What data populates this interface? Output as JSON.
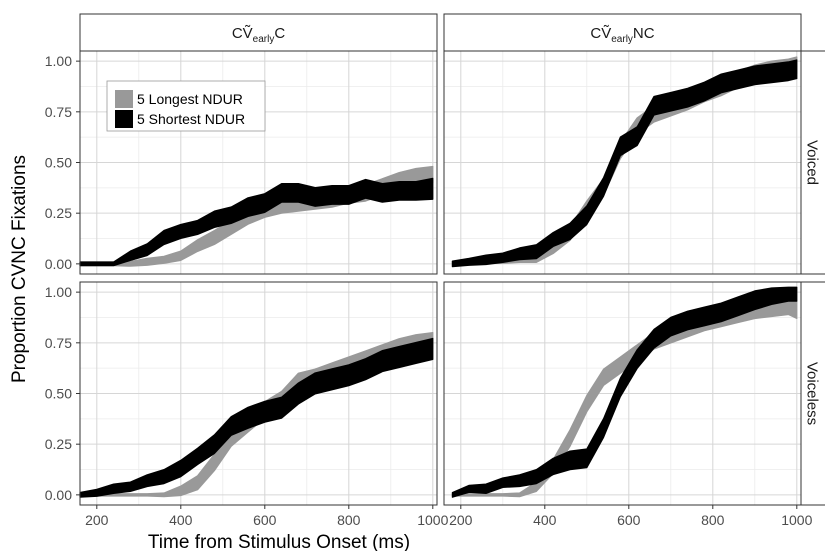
{
  "chart_data": {
    "type": "area",
    "xlabel": "Time from Stimulus Onset (ms)",
    "ylabel": "Proportion CVNC Fixations",
    "xlim": [
      160,
      1010
    ],
    "ylim": [
      -0.05,
      1.05
    ],
    "x_ticks": [
      200,
      400,
      600,
      800,
      1000
    ],
    "x_tick_labels": [
      "200",
      "400",
      "600",
      "800",
      "1000"
    ],
    "y_ticks": [
      0,
      0.25,
      0.5,
      0.75,
      1.0
    ],
    "y_tick_labels": [
      "0.00",
      "0.25",
      "0.50",
      "0.75",
      "1.00"
    ],
    "grid": true,
    "legend_position": "top-left",
    "columns": [
      {
        "base": "CV",
        "tilde": "̃",
        "sub": "early",
        "tail": "C"
      },
      {
        "base": "CV",
        "tilde": "̃",
        "sub": "early",
        "tail": "NC"
      }
    ],
    "rows": [
      "Voiced",
      "Voiceless"
    ],
    "series": [
      {
        "name": "5 Longest NDUR",
        "color": "#999999"
      },
      {
        "name": "5 Shortest NDUR",
        "color": "#000000"
      }
    ],
    "panels": [
      {
        "column": 0,
        "row": 0,
        "lines": [
          {
            "x": [
              160,
              240,
              280,
              320,
              360,
              400,
              440,
              480,
              520,
              560,
              600,
              640,
              680,
              720,
              760,
              800,
              840,
              880,
              920,
              960,
              1000
            ],
            "y": [
              0,
              0,
              0,
              0.01,
              0.02,
              0.04,
              0.09,
              0.13,
              0.18,
              0.23,
              0.27,
              0.29,
              0.3,
              0.31,
              0.32,
              0.34,
              0.35,
              0.38,
              0.41,
              0.43,
              0.44
            ],
            "w": [
              0.008,
              0.008,
              0.01,
              0.015,
              0.015,
              0.02,
              0.025,
              0.03,
              0.03,
              0.03,
              0.035,
              0.035,
              0.035,
              0.035,
              0.035,
              0.035,
              0.035,
              0.035,
              0.035,
              0.035,
              0.035
            ]
          },
          {
            "x": [
              160,
              240,
              280,
              320,
              360,
              400,
              440,
              480,
              520,
              560,
              600,
              640,
              680,
              720,
              760,
              800,
              840,
              880,
              920,
              960,
              1000
            ],
            "y": [
              0,
              0,
              0.04,
              0.07,
              0.13,
              0.16,
              0.18,
              0.22,
              0.24,
              0.28,
              0.3,
              0.35,
              0.35,
              0.33,
              0.34,
              0.34,
              0.37,
              0.35,
              0.36,
              0.36,
              0.37
            ],
            "w": [
              0.008,
              0.008,
              0.02,
              0.025,
              0.03,
              0.03,
              0.03,
              0.035,
              0.035,
              0.04,
              0.04,
              0.04,
              0.04,
              0.04,
              0.04,
              0.04,
              0.04,
              0.04,
              0.04,
              0.04,
              0.045
            ]
          }
        ]
      },
      {
        "column": 1,
        "row": 0,
        "lines": [
          {
            "x": [
              180,
              220,
              260,
              300,
              340,
              380,
              420,
              460,
              500,
              540,
              580,
              620,
              660,
              700,
              740,
              780,
              820,
              860,
              900,
              940,
              980,
              1000
            ],
            "y": [
              0,
              0.01,
              0.02,
              0.02,
              0.03,
              0.03,
              0.08,
              0.15,
              0.27,
              0.38,
              0.56,
              0.68,
              0.74,
              0.77,
              0.8,
              0.84,
              0.87,
              0.91,
              0.94,
              0.96,
              0.97,
              0.98
            ],
            "w": [
              0.01,
              0.01,
              0.015,
              0.015,
              0.02,
              0.02,
              0.025,
              0.03,
              0.035,
              0.035,
              0.035,
              0.035,
              0.035,
              0.035,
              0.035,
              0.035,
              0.035,
              0.035,
              0.035,
              0.035,
              0.035,
              0.035
            ]
          },
          {
            "x": [
              180,
              220,
              260,
              300,
              340,
              380,
              420,
              460,
              500,
              540,
              580,
              620,
              660,
              700,
              740,
              780,
              820,
              860,
              900,
              940,
              980,
              1000
            ],
            "y": [
              0,
              0.01,
              0.02,
              0.03,
              0.05,
              0.06,
              0.12,
              0.16,
              0.24,
              0.38,
              0.58,
              0.63,
              0.78,
              0.8,
              0.82,
              0.85,
              0.89,
              0.91,
              0.93,
              0.94,
              0.95,
              0.96
            ],
            "w": [
              0.012,
              0.015,
              0.02,
              0.02,
              0.025,
              0.03,
              0.03,
              0.035,
              0.04,
              0.04,
              0.04,
              0.04,
              0.04,
              0.04,
              0.04,
              0.04,
              0.04,
              0.04,
              0.04,
              0.04,
              0.04,
              0.04
            ]
          }
        ]
      },
      {
        "column": 0,
        "row": 1,
        "lines": [
          {
            "x": [
              160,
              200,
              240,
              280,
              320,
              360,
              400,
              440,
              480,
              520,
              560,
              600,
              640,
              680,
              720,
              760,
              800,
              840,
              880,
              920,
              960,
              1000
            ],
            "y": [
              0,
              0,
              0,
              0,
              0,
              0,
              0.02,
              0.06,
              0.16,
              0.28,
              0.35,
              0.42,
              0.47,
              0.56,
              0.58,
              0.61,
              0.64,
              0.67,
              0.7,
              0.73,
              0.75,
              0.76
            ],
            "w": [
              0.005,
              0.005,
              0.005,
              0.005,
              0.005,
              0.008,
              0.02,
              0.03,
              0.035,
              0.035,
              0.035,
              0.035,
              0.035,
              0.035,
              0.035,
              0.035,
              0.035,
              0.035,
              0.035,
              0.035,
              0.035,
              0.035
            ]
          },
          {
            "x": [
              160,
              200,
              240,
              280,
              320,
              360,
              400,
              440,
              480,
              520,
              560,
              600,
              640,
              680,
              720,
              760,
              800,
              840,
              880,
              920,
              960,
              1000
            ],
            "y": [
              0,
              0.01,
              0.03,
              0.04,
              0.07,
              0.09,
              0.13,
              0.19,
              0.25,
              0.34,
              0.38,
              0.41,
              0.43,
              0.5,
              0.55,
              0.57,
              0.59,
              0.62,
              0.66,
              0.68,
              0.7,
              0.72
            ],
            "w": [
              0.01,
              0.015,
              0.02,
              0.02,
              0.025,
              0.03,
              0.035,
              0.035,
              0.04,
              0.04,
              0.045,
              0.045,
              0.045,
              0.045,
              0.045,
              0.045,
              0.045,
              0.045,
              0.045,
              0.045,
              0.045,
              0.045
            ]
          }
        ]
      },
      {
        "column": 1,
        "row": 1,
        "lines": [
          {
            "x": [
              180,
              220,
              260,
              300,
              340,
              380,
              420,
              460,
              500,
              540,
              580,
              620,
              660,
              700,
              740,
              780,
              820,
              860,
              900,
              940,
              980,
              1000
            ],
            "y": [
              0,
              0,
              0,
              0,
              0,
              0.04,
              0.14,
              0.28,
              0.45,
              0.58,
              0.64,
              0.7,
              0.76,
              0.79,
              0.82,
              0.85,
              0.87,
              0.89,
              0.91,
              0.92,
              0.93,
              0.91
            ],
            "w": [
              0.005,
              0.005,
              0.005,
              0.005,
              0.008,
              0.02,
              0.03,
              0.035,
              0.035,
              0.035,
              0.035,
              0.035,
              0.035,
              0.035,
              0.035,
              0.035,
              0.035,
              0.035,
              0.035,
              0.035,
              0.035,
              0.035
            ]
          },
          {
            "x": [
              180,
              220,
              260,
              300,
              340,
              380,
              420,
              460,
              500,
              540,
              580,
              620,
              660,
              700,
              740,
              780,
              820,
              860,
              900,
              940,
              980,
              1000
            ],
            "y": [
              0,
              0.03,
              0.03,
              0.06,
              0.07,
              0.09,
              0.14,
              0.17,
              0.18,
              0.33,
              0.53,
              0.67,
              0.77,
              0.83,
              0.86,
              0.88,
              0.9,
              0.93,
              0.96,
              0.98,
              0.99,
              0.99
            ],
            "w": [
              0.01,
              0.015,
              0.02,
              0.02,
              0.025,
              0.03,
              0.035,
              0.04,
              0.04,
              0.04,
              0.04,
              0.04,
              0.04,
              0.04,
              0.04,
              0.04,
              0.04,
              0.04,
              0.04,
              0.035,
              0.03,
              0.03
            ]
          }
        ]
      }
    ]
  }
}
